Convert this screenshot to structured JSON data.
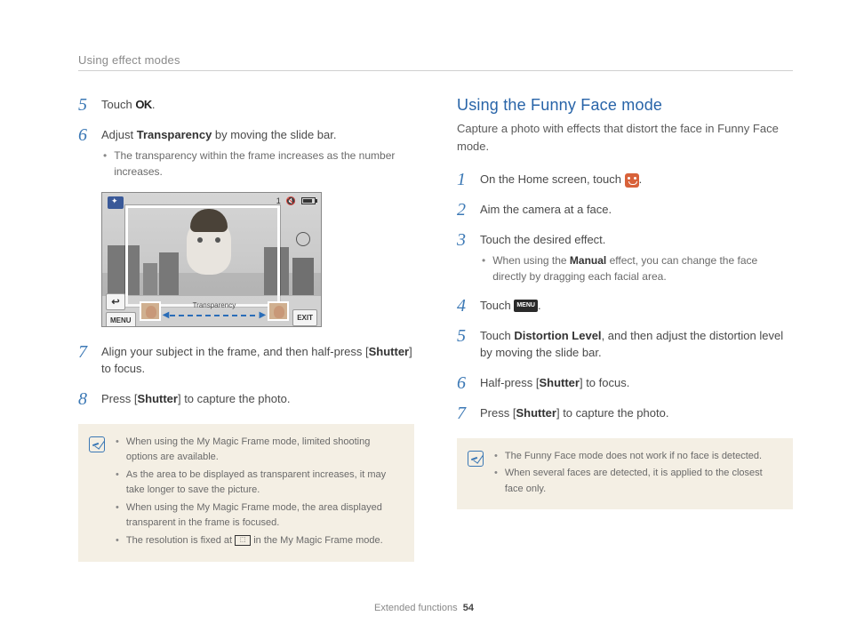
{
  "breadcrumb": "Using effect modes",
  "left": {
    "steps": [
      {
        "n": "5",
        "pre": "Touch ",
        "icon": "ok",
        "post": "."
      },
      {
        "n": "6",
        "text_html": "Adjust <b>Transparency</b> by moving the slide bar.",
        "bullets": [
          "The transparency within the frame increases as the number increases."
        ]
      },
      {
        "n": "7",
        "text_html": "Align your subject in the frame, and then half-press [<b>Shutter</b>] to focus."
      },
      {
        "n": "8",
        "text_html": "Press [<b>Shutter</b>] to capture the photo."
      }
    ],
    "screenshot": {
      "count": "1",
      "menu": "MENU",
      "exit": "EXIT",
      "slider_label": "Transparency"
    },
    "notes": [
      "When using the My Magic Frame mode, limited shooting options are available.",
      "As the area to be displayed as transparent increases, it may take longer to save the picture.",
      "When using the My Magic Frame mode, the area displayed transparent in the frame is focused.",
      "The resolution is fixed at [RES] in the My Magic Frame mode."
    ]
  },
  "right": {
    "title": "Using the Funny Face mode",
    "subtitle": "Capture a photo with effects that distort the face in Funny Face mode.",
    "steps": [
      {
        "n": "1",
        "pre": "On the Home screen, touch ",
        "icon": "ff",
        "post": "."
      },
      {
        "n": "2",
        "text": "Aim the camera at a face."
      },
      {
        "n": "3",
        "text": "Touch the desired effect.",
        "bullets_html": [
          "When using the <b>Manual</b> effect, you can change the face directly by dragging each facial area."
        ]
      },
      {
        "n": "4",
        "pre": "Touch ",
        "icon": "menu",
        "post": "."
      },
      {
        "n": "5",
        "text_html": "Touch <b>Distortion Level</b>, and then adjust the distortion level by moving the slide bar."
      },
      {
        "n": "6",
        "text_html": "Half-press [<b>Shutter</b>] to focus."
      },
      {
        "n": "7",
        "text_html": "Press [<b>Shutter</b>] to capture the photo."
      }
    ],
    "notes": [
      "The Funny Face mode does not work if no face is detected.",
      "When several faces are detected, it is applied to the closest face only."
    ]
  },
  "footer": {
    "section": "Extended functions",
    "page": "54"
  }
}
